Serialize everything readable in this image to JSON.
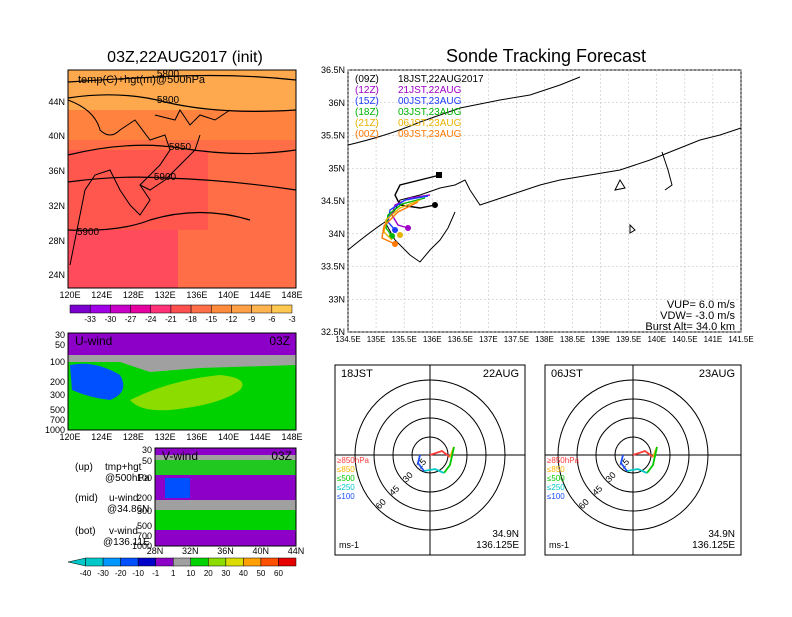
{
  "left_title": "03Z,22AUG2017 (init)",
  "main_title": "Sonde Tracking Forecast",
  "map_panel": {
    "label": "temp(C)+hgt(m)@500hPa",
    "y_ticks": [
      "44N",
      "40N",
      "36N",
      "32N",
      "28N",
      "24N"
    ],
    "x_ticks": [
      "120E",
      "124E",
      "128E",
      "132E",
      "136E",
      "140E",
      "144E",
      "148E"
    ],
    "contour_labels": [
      "5800",
      "5850",
      "5900",
      "5900"
    ],
    "contour_label_top": "5800",
    "colorbar": [
      "-33",
      "-30",
      "-27",
      "-24",
      "-21",
      "-18",
      "-15",
      "-12",
      "-9",
      "-6",
      "-3"
    ],
    "colors": [
      "#7b00d0",
      "#a000e6",
      "#c800c8",
      "#e600a0",
      "#ff3278",
      "#ff5050",
      "#ff6e46",
      "#ff8c3c",
      "#ffa046",
      "#ffb450",
      "#ffc850"
    ]
  },
  "uwind_panel": {
    "label": "U-wind",
    "time": "03Z",
    "y_ticks": [
      "30",
      "50",
      "100",
      "200",
      "300",
      "500",
      "700",
      "1000"
    ],
    "x_ticks": [
      "120E",
      "124E",
      "128E",
      "132E",
      "136E",
      "140E",
      "144E",
      "148E"
    ]
  },
  "vwind_panel": {
    "label": "V-wind",
    "time": "03Z",
    "y_ticks": [
      "30",
      "50",
      "100",
      "200",
      "300",
      "500",
      "700",
      "1000"
    ],
    "x_ticks": [
      "28N",
      "32N",
      "36N",
      "40N",
      "44N"
    ]
  },
  "notes": {
    "up_label": "(up)",
    "up_value": "tmp+hgt",
    "up_level": "@500hPa",
    "mid_label": "(mid)",
    "mid_value": "u-wind",
    "mid_level": "@34.86N",
    "bot_label": "(bot)",
    "bot_value": "v-wind",
    "bot_level": "@136.11E"
  },
  "wind_colorbar": {
    "labels": [
      "-40",
      "-30",
      "-20",
      "-10",
      "-1",
      "1",
      "10",
      "20",
      "30",
      "40",
      "50",
      "60"
    ],
    "colors": [
      "#00c8c8",
      "#0096ff",
      "#0050ff",
      "#0000c8",
      "#8c00c8",
      "#a0a0a0",
      "#00d200",
      "#8cdc00",
      "#dcdc00",
      "#ffa000",
      "#ff5000",
      "#e60000"
    ]
  },
  "track_map": {
    "y_ticks": [
      "36.5N",
      "36N",
      "35.5N",
      "35N",
      "34.5N",
      "34N",
      "33.5N",
      "33N",
      "32.5N"
    ],
    "x_ticks": [
      "134.5E",
      "135E",
      "135.5E",
      "136E",
      "136.5E",
      "137E",
      "137.5E",
      "138E",
      "138.5E",
      "139E",
      "139.5E",
      "140E",
      "140.5E",
      "141E",
      "141.5E"
    ],
    "legend": [
      {
        "run": "(09Z)",
        "time": "18JST,22AUG2017",
        "color": "#000000"
      },
      {
        "run": "(12Z)",
        "time": "21JST,22AUG",
        "color": "#a000c8"
      },
      {
        "run": "(15Z)",
        "time": "00JST,23AUG",
        "color": "#1e3cff"
      },
      {
        "run": "(18Z)",
        "time": "03JST,23AUG",
        "color": "#00b400"
      },
      {
        "run": "(21Z)",
        "time": "06JST,23AUG",
        "color": "#e6b400"
      },
      {
        "run": "(00Z)",
        "time": "09JST,23AUG",
        "color": "#ff7800"
      }
    ],
    "vup": "VUP=  6.0  m/s",
    "vdw": "VDW=  -3.0  m/s",
    "burst": "Burst Alt=  34.0  km"
  },
  "hodo_left": {
    "time": "18JST",
    "date": "22AUG",
    "rings": [
      "15",
      "30",
      "45",
      "60"
    ],
    "levels": [
      "≥850hPa",
      "≤850",
      "≤500",
      "≤250",
      "≤100"
    ],
    "level_colors": [
      "#ff3c3c",
      "#ffb400",
      "#00c800",
      "#00c8c8",
      "#1e50ff"
    ],
    "lat": "34.9N",
    "lon": "136.125E",
    "unit": "ms-1"
  },
  "hodo_right": {
    "time": "06JST",
    "date": "23AUG",
    "rings": [
      "15",
      "30",
      "45",
      "60"
    ],
    "levels": [
      "≥850hPa",
      "≤850",
      "≤500",
      "≤250",
      "≤100"
    ],
    "level_colors": [
      "#ff3c3c",
      "#ffb400",
      "#00c800",
      "#00c8c8",
      "#1e50ff"
    ],
    "lat": "34.9N",
    "lon": "136.125E",
    "unit": "ms-1"
  }
}
